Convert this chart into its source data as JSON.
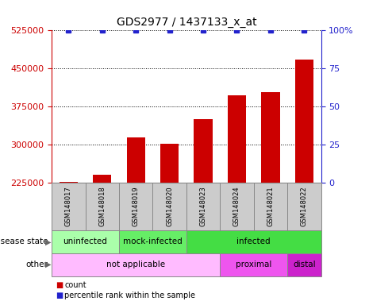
{
  "title": "GDS2977 / 1437133_x_at",
  "samples": [
    "GSM148017",
    "GSM148018",
    "GSM148019",
    "GSM148020",
    "GSM148023",
    "GSM148024",
    "GSM148021",
    "GSM148022"
  ],
  "counts": [
    226500,
    242000,
    315000,
    302000,
    350000,
    398000,
    403000,
    468000
  ],
  "percentile_ranks": [
    100,
    100,
    100,
    100,
    100,
    100,
    100,
    100
  ],
  "ylim_left": [
    225000,
    525000
  ],
  "ylim_right": [
    0,
    100
  ],
  "yticks_left": [
    225000,
    300000,
    375000,
    450000,
    525000
  ],
  "yticks_right": [
    0,
    25,
    50,
    75,
    100
  ],
  "bar_color": "#cc0000",
  "dot_color": "#2222cc",
  "disease_state_groups": [
    {
      "label": "uninfected",
      "start": 0,
      "end": 2,
      "color": "#aaffaa"
    },
    {
      "label": "mock-infected",
      "start": 2,
      "end": 4,
      "color": "#66ee66"
    },
    {
      "label": "infected",
      "start": 4,
      "end": 8,
      "color": "#44dd44"
    }
  ],
  "other_groups": [
    {
      "label": "not applicable",
      "start": 0,
      "end": 5,
      "color": "#ffbbff"
    },
    {
      "label": "proximal",
      "start": 5,
      "end": 7,
      "color": "#ee55ee"
    },
    {
      "label": "distal",
      "start": 7,
      "end": 8,
      "color": "#cc22cc"
    }
  ],
  "disease_state_label": "disease state",
  "other_label": "other",
  "legend_count_label": "count",
  "legend_percentile_label": "percentile rank within the sample",
  "bar_color_red": "#cc0000",
  "dot_color_blue": "#2222cc",
  "sample_box_color": "#cccccc",
  "figsize": [
    4.65,
    3.84
  ],
  "dpi": 100
}
